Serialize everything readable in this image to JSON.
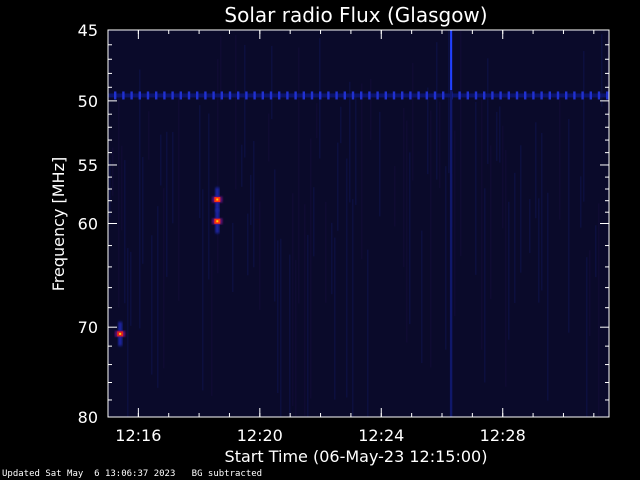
{
  "chart_data": {
    "type": "heatmap",
    "title": "Solar radio Flux (Glasgow)",
    "xlabel": "Start Time (06-May-23 12:15:00)",
    "ylabel": "Frequency [MHz]",
    "x_range_minutes": [
      0,
      16.5
    ],
    "x_ticks": [
      {
        "label": "12:16",
        "minutes": 1
      },
      {
        "label": "12:20",
        "minutes": 5
      },
      {
        "label": "12:24",
        "minutes": 9
      },
      {
        "label": "12:28",
        "minutes": 13
      }
    ],
    "ylim": [
      45,
      80
    ],
    "y_ticks": [
      45,
      50,
      55,
      60,
      70,
      80
    ],
    "y_scale": "log",
    "y_inverted": true,
    "background_color": "#0a0a2a",
    "features": [
      {
        "kind": "band",
        "freq_mhz": 49.6,
        "color": "#2030d0"
      },
      {
        "kind": "burst",
        "minutes": 3.6,
        "freq_mhz": 57.9,
        "color": "#ff3010"
      },
      {
        "kind": "burst",
        "minutes": 3.6,
        "freq_mhz": 59.8,
        "color": "#ff3010"
      },
      {
        "kind": "burst",
        "minutes": 0.4,
        "freq_mhz": 70.7,
        "color": "#e02020"
      },
      {
        "kind": "vertical-line",
        "minutes": 11.3,
        "color": "#2040ff"
      }
    ]
  },
  "footer": {
    "updated": "Updated Sat May  6 13:06:37 2023",
    "note": "BG subtracted"
  }
}
